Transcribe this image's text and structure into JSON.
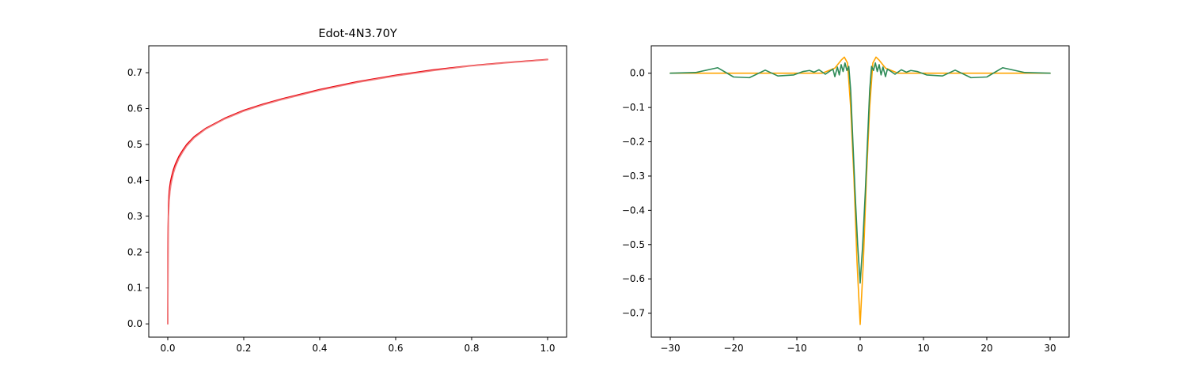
{
  "chart_data": [
    {
      "type": "line",
      "title": "Edot-4N3.70Y",
      "xlabel": "",
      "ylabel": "",
      "xlim": [
        -0.05,
        1.05
      ],
      "ylim": [
        -0.037,
        0.775
      ],
      "x_ticks": [
        0.0,
        0.2,
        0.4,
        0.6,
        0.8,
        1.0
      ],
      "x_tick_labels": [
        "0.0",
        "0.2",
        "0.4",
        "0.6",
        "0.8",
        "1.0"
      ],
      "y_ticks": [
        0.0,
        0.1,
        0.2,
        0.3,
        0.4,
        0.5,
        0.6,
        0.7
      ],
      "y_tick_labels": [
        "0.0",
        "0.1",
        "0.2",
        "0.3",
        "0.4",
        "0.5",
        "0.6",
        "0.7"
      ],
      "grid": false,
      "series": [
        {
          "color": "#e8000b",
          "x": [
            0,
            0.0005,
            0.001,
            0.002,
            0.003,
            0.004,
            0.005,
            0.007,
            0.01,
            0.015,
            0.02,
            0.03,
            0.04,
            0.05,
            0.07,
            0.1,
            0.15,
            0.2,
            0.25,
            0.3,
            0.4,
            0.5,
            0.6,
            0.7,
            0.8,
            0.9,
            1.0
          ],
          "y": [
            0.0,
            0.2,
            0.27,
            0.33,
            0.355,
            0.37,
            0.38,
            0.395,
            0.41,
            0.43,
            0.445,
            0.468,
            0.485,
            0.5,
            0.522,
            0.545,
            0.573,
            0.595,
            0.612,
            0.627,
            0.653,
            0.675,
            0.693,
            0.708,
            0.72,
            0.729,
            0.737
          ]
        },
        {
          "color": "#f08080",
          "x": [
            0,
            0.002,
            0.004,
            0.006,
            0.008,
            0.01,
            0.015,
            0.02,
            0.03,
            0.04,
            0.05,
            0.07,
            0.1,
            0.15,
            0.2,
            0.25,
            0.3,
            0.4,
            0.5,
            0.6,
            0.7,
            0.8,
            0.9,
            1.0
          ],
          "y": [
            0.0,
            0.3,
            0.345,
            0.37,
            0.385,
            0.397,
            0.42,
            0.437,
            0.462,
            0.48,
            0.496,
            0.519,
            0.543,
            0.571,
            0.593,
            0.61,
            0.625,
            0.651,
            0.673,
            0.691,
            0.706,
            0.719,
            0.728,
            0.736
          ]
        }
      ]
    },
    {
      "type": "line",
      "title": "",
      "xlabel": "",
      "ylabel": "",
      "xlim": [
        -33,
        33
      ],
      "ylim": [
        -0.77,
        0.08
      ],
      "x_ticks": [
        -30,
        -20,
        -10,
        0,
        10,
        20,
        30
      ],
      "x_tick_labels": [
        "−30",
        "−20",
        "−10",
        "0",
        "10",
        "20",
        "30"
      ],
      "y_ticks": [
        0.0,
        -0.1,
        -0.2,
        -0.3,
        -0.4,
        -0.5,
        -0.6,
        -0.7
      ],
      "y_tick_labels": [
        "0.0",
        "−0.1",
        "−0.2",
        "−0.3",
        "−0.4",
        "−0.5",
        "−0.6",
        "−0.7"
      ],
      "grid": false,
      "series": [
        {
          "color": "#ffa500",
          "x": [
            -30,
            -6,
            -4,
            -3,
            -2.5,
            -2,
            -1.5,
            -1,
            -0.5,
            0,
            0.5,
            1,
            1.5,
            2,
            2.5,
            3,
            4,
            6,
            30
          ],
          "y": [
            0.0,
            0.0,
            0.015,
            0.038,
            0.047,
            0.03,
            -0.1,
            -0.3,
            -0.55,
            -0.733,
            -0.55,
            -0.3,
            -0.1,
            0.03,
            0.047,
            0.038,
            0.015,
            0.0,
            0.0
          ]
        },
        {
          "color": "#2e8b57",
          "x": [
            -30,
            -26,
            -22.5,
            -20,
            -17.5,
            -15,
            -13,
            -10.5,
            -9,
            -8,
            -7.3,
            -6.5,
            -5.5,
            -4.8,
            -4.3,
            -4.0,
            -3.6,
            -3.3,
            -3.0,
            -2.7,
            -2.4,
            -2.1,
            -1.8,
            -1.5,
            -1.2,
            -0.8,
            -0.4,
            0,
            0.4,
            0.8,
            1.2,
            1.5,
            1.8,
            2.1,
            2.4,
            2.7,
            3.0,
            3.3,
            3.6,
            4.0,
            4.3,
            4.8,
            5.5,
            6.5,
            7.3,
            8,
            9,
            10.5,
            13,
            15,
            17.5,
            20,
            22.5,
            26,
            30
          ],
          "y": [
            0.0,
            0.002,
            0.016,
            -0.011,
            -0.013,
            0.009,
            -0.008,
            -0.005,
            0.005,
            0.008,
            0.003,
            0.01,
            -0.003,
            0.006,
            0.012,
            -0.01,
            0.018,
            -0.005,
            0.025,
            0.005,
            0.03,
            0.008,
            0.02,
            -0.05,
            -0.18,
            -0.35,
            -0.5,
            -0.612,
            -0.5,
            -0.35,
            -0.18,
            -0.05,
            0.02,
            0.008,
            0.03,
            0.005,
            0.025,
            -0.005,
            0.018,
            -0.01,
            0.012,
            0.006,
            -0.003,
            0.01,
            0.003,
            0.008,
            0.005,
            -0.005,
            -0.008,
            0.009,
            -0.013,
            -0.011,
            0.016,
            0.002,
            0.0
          ]
        }
      ]
    }
  ]
}
